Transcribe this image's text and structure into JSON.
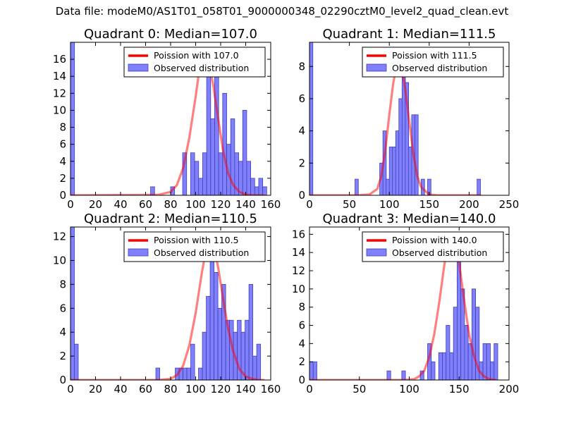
{
  "figure": {
    "suptitle": "Data file: modeM0/AS1T01_058T01_9000000348_02290cztM0_level2_quad_clean.evt"
  },
  "colors": {
    "poisson_line": "#ff0000",
    "hist_fill": "#8080ff",
    "hist_edge": "#4040b0",
    "axes": "#000000"
  },
  "chart_data": [
    {
      "type": "bar",
      "title": "Quadrant 0: Median=107.0",
      "xlabel": "",
      "ylabel": "",
      "xlim": [
        0,
        160
      ],
      "ylim": [
        0,
        18
      ],
      "xticks": [
        0,
        20,
        40,
        60,
        80,
        100,
        120,
        140,
        160
      ],
      "yticks": [
        0,
        2,
        4,
        6,
        8,
        10,
        12,
        14,
        16
      ],
      "legend": {
        "placement": "top-right",
        "entries": [
          "Poission with 107.0",
          "Observed distribution"
        ]
      },
      "hist": {
        "bin_width": 3.2,
        "bins": [
          [
            0,
            18
          ],
          [
            64,
            1
          ],
          [
            80,
            1
          ],
          [
            89.6,
            5
          ],
          [
            96,
            5
          ],
          [
            99.2,
            4
          ],
          [
            102.4,
            2
          ],
          [
            105.6,
            5
          ],
          [
            108.8,
            17
          ],
          [
            112,
            9
          ],
          [
            115.2,
            14
          ],
          [
            118.4,
            5
          ],
          [
            121.6,
            12
          ],
          [
            124.8,
            6
          ],
          [
            128,
            9
          ],
          [
            131.2,
            5
          ],
          [
            134.4,
            4
          ],
          [
            137.6,
            10
          ],
          [
            140.8,
            4
          ],
          [
            144,
            2
          ],
          [
            147.2,
            1
          ],
          [
            150.4,
            2
          ],
          [
            153.6,
            1
          ]
        ]
      },
      "poisson_curve": {
        "x": [
          0,
          70,
          80,
          85,
          90,
          95,
          100,
          103,
          107,
          110,
          114,
          118,
          122,
          126,
          130,
          135,
          140,
          145,
          155
        ],
        "y": [
          0,
          0.05,
          0.4,
          1.2,
          3.2,
          6.8,
          11.6,
          14.8,
          16.8,
          16.2,
          13.0,
          9.0,
          5.2,
          2.6,
          1.2,
          0.4,
          0.1,
          0.02,
          0
        ]
      }
    },
    {
      "type": "bar",
      "title": "Quadrant 1: Median=111.5",
      "xlabel": "",
      "ylabel": "",
      "xlim": [
        0,
        250
      ],
      "ylim": [
        0,
        9.5
      ],
      "xticks": [
        0,
        50,
        100,
        150,
        200,
        250
      ],
      "yticks": [
        0,
        2,
        4,
        6,
        8
      ],
      "legend": {
        "placement": "top-right",
        "entries": [
          "Poission with 111.5",
          "Observed distribution"
        ]
      },
      "hist": {
        "bin_width": 4.2,
        "bins": [
          [
            0,
            9.5
          ],
          [
            57,
            1
          ],
          [
            88,
            2
          ],
          [
            92,
            4
          ],
          [
            96,
            1
          ],
          [
            100,
            3
          ],
          [
            104,
            3
          ],
          [
            108,
            4
          ],
          [
            112,
            6
          ],
          [
            116,
            9
          ],
          [
            120,
            7
          ],
          [
            124,
            3
          ],
          [
            128,
            5
          ],
          [
            132,
            5
          ],
          [
            140,
            1
          ],
          [
            148,
            1
          ],
          [
            210,
            1
          ]
        ]
      },
      "poisson_curve": {
        "x": [
          0,
          60,
          75,
          85,
          90,
          95,
          100,
          105,
          111,
          115,
          120,
          125,
          130,
          135,
          140,
          150,
          160,
          215
        ],
        "y": [
          0,
          0,
          0.05,
          0.4,
          1.2,
          2.8,
          5.0,
          7.0,
          8.5,
          8.1,
          6.6,
          4.6,
          2.6,
          1.2,
          0.5,
          0.05,
          0,
          0
        ]
      }
    },
    {
      "type": "bar",
      "title": "Quadrant 2: Median=110.5",
      "xlabel": "",
      "ylabel": "",
      "xlim": [
        0,
        160
      ],
      "ylim": [
        0,
        12.8
      ],
      "xticks": [
        0,
        20,
        40,
        60,
        80,
        100,
        120,
        140,
        160
      ],
      "yticks": [
        0,
        2,
        4,
        6,
        8,
        10,
        12
      ],
      "legend": {
        "placement": "top-right",
        "entries": [
          "Poission with 110.5",
          "Observed distribution"
        ]
      },
      "hist": {
        "bin_width": 3.1,
        "bins": [
          [
            0,
            12.8
          ],
          [
            3.1,
            3
          ],
          [
            68.2,
            1
          ],
          [
            83.7,
            1
          ],
          [
            86.8,
            1
          ],
          [
            89.9,
            1
          ],
          [
            93,
            1
          ],
          [
            96.1,
            3
          ],
          [
            102.3,
            1
          ],
          [
            105.4,
            4
          ],
          [
            108.5,
            7
          ],
          [
            111.6,
            11
          ],
          [
            114.7,
            9
          ],
          [
            117.8,
            6
          ],
          [
            120.9,
            8
          ],
          [
            124,
            5
          ],
          [
            127.1,
            5
          ],
          [
            130.2,
            4
          ],
          [
            133.3,
            5
          ],
          [
            136.4,
            4
          ],
          [
            139.5,
            5
          ],
          [
            142.6,
            8
          ],
          [
            145.7,
            2
          ],
          [
            148.8,
            3
          ]
        ]
      },
      "poisson_curve": {
        "x": [
          0,
          70,
          80,
          85,
          90,
          95,
          100,
          105,
          110,
          114,
          118,
          122,
          126,
          130,
          135,
          140,
          145,
          150,
          155
        ],
        "y": [
          0,
          0,
          0.1,
          0.4,
          1.2,
          2.9,
          5.6,
          9.0,
          11.9,
          11.5,
          9.4,
          6.8,
          4.3,
          2.4,
          0.9,
          0.3,
          0.1,
          0,
          0
        ]
      }
    },
    {
      "type": "bar",
      "title": "Quadrant 3: Median=140.0",
      "xlabel": "",
      "ylabel": "",
      "xlim": [
        0,
        200
      ],
      "ylim": [
        0,
        16.8
      ],
      "xticks": [
        0,
        50,
        100,
        150,
        200
      ],
      "yticks": [
        0,
        2,
        4,
        6,
        8,
        10,
        12,
        14,
        16
      ],
      "legend": {
        "placement": "top-right",
        "entries": [
          "Poission with 140.0",
          "Observed distribution"
        ]
      },
      "hist": {
        "bin_width": 3.7,
        "bins": [
          [
            0,
            2
          ],
          [
            3.7,
            2
          ],
          [
            77.7,
            1
          ],
          [
            92.5,
            1
          ],
          [
            111,
            1
          ],
          [
            118.4,
            4
          ],
          [
            122.1,
            2
          ],
          [
            129.5,
            3
          ],
          [
            133.2,
            3
          ],
          [
            136.9,
            6
          ],
          [
            140.6,
            3
          ],
          [
            144.3,
            8
          ],
          [
            148,
            16
          ],
          [
            151.7,
            10
          ],
          [
            155.4,
            6
          ],
          [
            159.1,
            4
          ],
          [
            162.8,
            10
          ],
          [
            166.5,
            8
          ],
          [
            170.2,
            2
          ],
          [
            173.9,
            4
          ],
          [
            177.6,
            4
          ],
          [
            181.3,
            2
          ],
          [
            185,
            4
          ]
        ]
      },
      "poisson_curve": {
        "x": [
          0,
          95,
          105,
          110,
          115,
          120,
          125,
          130,
          135,
          140,
          145,
          150,
          155,
          160,
          165,
          170,
          175,
          180,
          187
        ],
        "y": [
          0,
          0,
          0.1,
          0.4,
          1.0,
          2.5,
          5.0,
          8.5,
          12.5,
          15.8,
          15.5,
          12.8,
          8.8,
          5.0,
          2.6,
          1.0,
          0.4,
          0.1,
          0
        ]
      }
    }
  ]
}
